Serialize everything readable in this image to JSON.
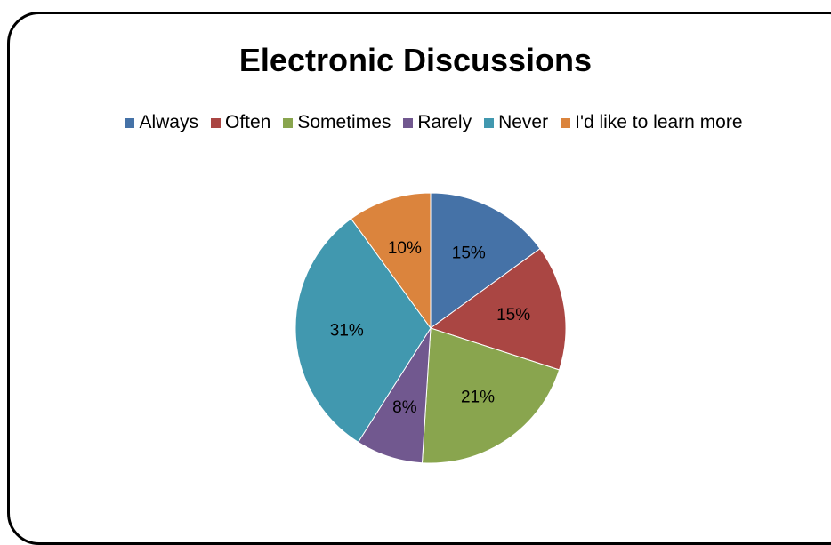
{
  "chart_data": {
    "type": "pie",
    "title": "Electronic Discussions",
    "legend_position": "top",
    "slices": [
      {
        "label": "Always",
        "value": 15,
        "value_label": "15%",
        "color": "#4572A7"
      },
      {
        "label": "Often",
        "value": 15,
        "value_label": "15%",
        "color": "#AA4643"
      },
      {
        "label": "Sometimes",
        "value": 21,
        "value_label": "21%",
        "color": "#89A54E"
      },
      {
        "label": "Rarely",
        "value": 8,
        "value_label": "8%",
        "color": "#71588F"
      },
      {
        "label": "Never",
        "value": 31,
        "value_label": "31%",
        "color": "#4198AF"
      },
      {
        "label": "I'd like to learn more",
        "value": 10,
        "value_label": "10%",
        "color": "#DB843D"
      }
    ]
  }
}
